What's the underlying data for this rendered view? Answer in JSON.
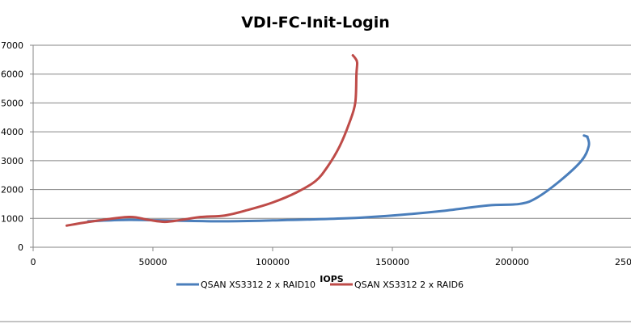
{
  "chart_data": {
    "type": "line",
    "title": "VDI-FC-Init-Login",
    "xlabel": "IOPS",
    "ylabel": "",
    "xlim": [
      0,
      250000
    ],
    "ylim": [
      0,
      7000
    ],
    "x_ticks": [
      "0",
      "50000",
      "100000",
      "150000",
      "200000",
      "250000"
    ],
    "y_ticks": [
      "0",
      "1000",
      "2000",
      "3000",
      "4000",
      "5000",
      "6000",
      "7000"
    ],
    "grid": "horizontal",
    "legend": "bottom",
    "series": [
      {
        "name": "QSAN XS3312 2 x RAID10",
        "color": "#4a7ebb",
        "points": [
          [
            23000,
            900
          ],
          [
            40000,
            950
          ],
          [
            60000,
            920
          ],
          [
            80000,
            900
          ],
          [
            100000,
            930
          ],
          [
            130000,
            1000
          ],
          [
            150000,
            1100
          ],
          [
            170000,
            1250
          ],
          [
            190000,
            1450
          ],
          [
            203000,
            1500
          ],
          [
            210000,
            1700
          ],
          [
            220000,
            2300
          ],
          [
            229000,
            3000
          ],
          [
            232000,
            3500
          ],
          [
            231500,
            3800
          ],
          [
            230000,
            3870
          ],
          [
            231500,
            3830
          ]
        ]
      },
      {
        "name": "QSAN XS3312 2 x RAID6",
        "color": "#be4b48",
        "points": [
          [
            14000,
            750
          ],
          [
            25000,
            900
          ],
          [
            40000,
            1050
          ],
          [
            48000,
            950
          ],
          [
            55000,
            880
          ],
          [
            62000,
            950
          ],
          [
            70000,
            1050
          ],
          [
            80000,
            1100
          ],
          [
            90000,
            1300
          ],
          [
            100000,
            1550
          ],
          [
            110000,
            1900
          ],
          [
            118000,
            2300
          ],
          [
            123000,
            2800
          ],
          [
            128000,
            3500
          ],
          [
            132000,
            4300
          ],
          [
            134500,
            5000
          ],
          [
            135000,
            6000
          ],
          [
            135300,
            6400
          ],
          [
            134500,
            6550
          ],
          [
            133500,
            6650
          ]
        ]
      }
    ]
  }
}
